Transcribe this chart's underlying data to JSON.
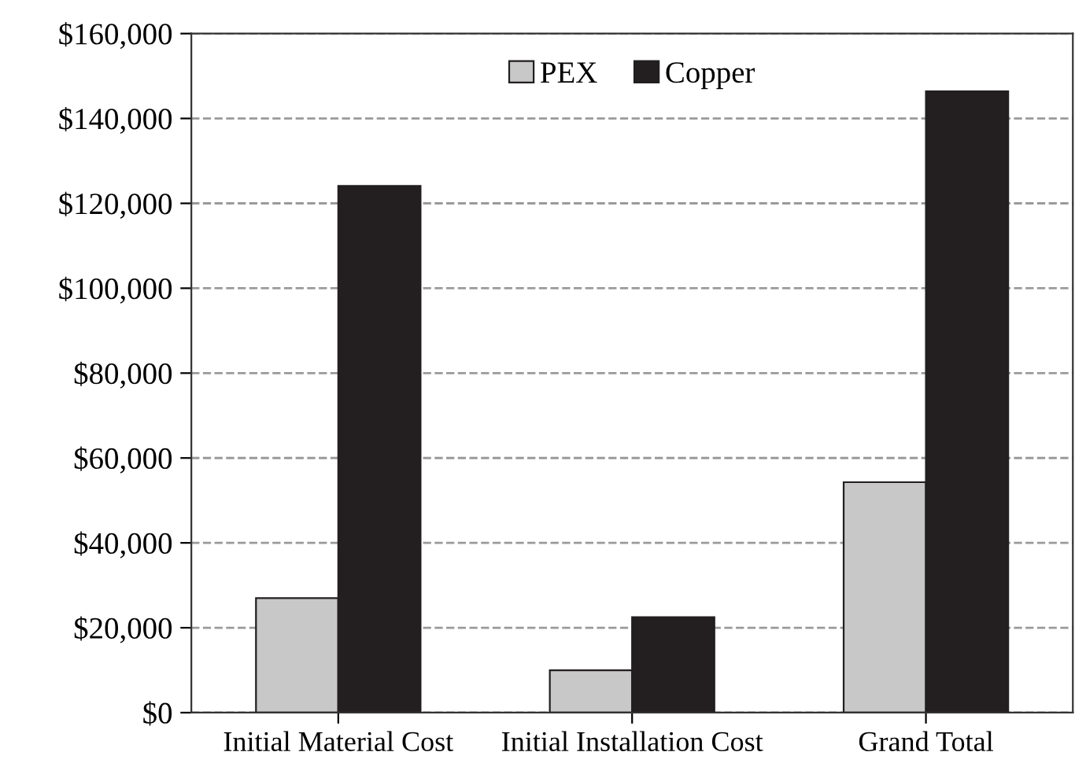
{
  "chart_data": {
    "type": "bar",
    "categories": [
      "Initial Material Cost",
      "Initial Installation Cost",
      "Grand Total"
    ],
    "series": [
      {
        "name": "PEX",
        "color": "#c8c8c8",
        "values": [
          27000,
          10000,
          54300
        ]
      },
      {
        "name": "Copper",
        "color": "#231f20",
        "values": [
          124100,
          22500,
          146400
        ]
      }
    ],
    "ylim": [
      0,
      160000
    ],
    "yticks": [
      {
        "value": 0,
        "label": "$0"
      },
      {
        "value": 20000,
        "label": "$20,000"
      },
      {
        "value": 40000,
        "label": "$40,000"
      },
      {
        "value": 60000,
        "label": "$60,000"
      },
      {
        "value": 80000,
        "label": "$80,000"
      },
      {
        "value": 100000,
        "label": "$100,000"
      },
      {
        "value": 120000,
        "label": "$120,000"
      },
      {
        "value": 140000,
        "label": "$140,000"
      },
      {
        "value": 160000,
        "label": "$160,000"
      }
    ],
    "grid": "y",
    "legend": "top"
  }
}
